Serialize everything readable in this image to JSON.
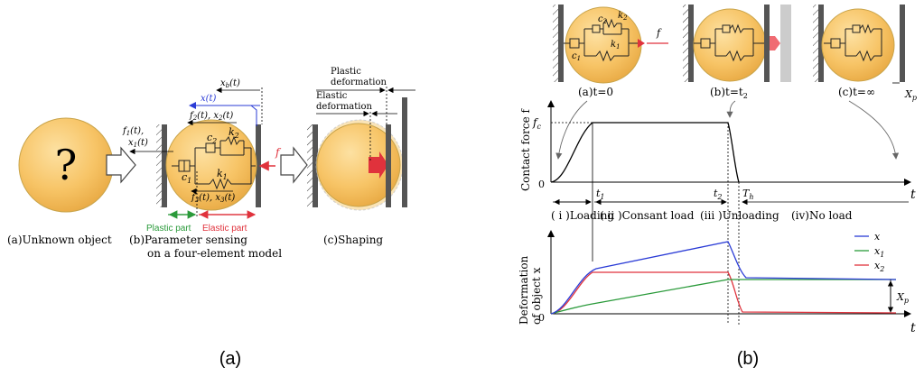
{
  "panel_a": {
    "caption": "(a)",
    "unknown_mark": "?",
    "sub_a": "(a)Unknown object",
    "sub_b_line1": "(b)Parameter sensing",
    "sub_b_line2": "on a four-element model",
    "sub_c": "(c)Shaping",
    "labels": {
      "f1x1_line1": "f",
      "f1x1_sub1": "1",
      "f1x1_rest": "(t),",
      "x1": "x",
      "x1_sub": "1",
      "x1_rest": "(t)",
      "xb": "x",
      "xb_sub": "b",
      "xb_rest": "(t)",
      "xt": "x(t)",
      "f2": "f",
      "f2_sub": "2",
      "f2_rest": "(t), x",
      "f2_sub2": "2",
      "f2_rest2": "(t)",
      "f3": "f",
      "f3_sub": "3",
      "f3_rest": "(t), x",
      "f3_sub2": "3",
      "f3_rest2": "(t)",
      "c2": "c",
      "c2_sub": "2",
      "k2": "k",
      "k2_sub": "2",
      "k1": "k",
      "k1_sub": "1",
      "c1": "c",
      "c1_sub": "1",
      "f": "f",
      "plastic_part": "Plastic part",
      "elastic_part": "Elastic part",
      "plastic_def_1": "Plastic",
      "plastic_def_2": "deformation",
      "elastic_def_1": "Elastic",
      "elastic_def_2": "deformation"
    }
  },
  "panel_b": {
    "caption": "(b)",
    "states": {
      "a": "(a)t=0",
      "b": "(b)t=t",
      "b_sub": "2",
      "c": "(c)t=∞",
      "xp": "X",
      "xp_sub": "p",
      "f": "f",
      "c1": "c",
      "c1_sub": "1",
      "c2": "c",
      "c2_sub": "2",
      "k1": "k",
      "k1_sub": "1",
      "k2": "k",
      "k2_sub": "2"
    },
    "force_plot": {
      "ylabel": "Contact force f",
      "fc": "f",
      "fc_sub": "c",
      "zero": "0",
      "t": "t",
      "t1": "t",
      "t1_sub": "1",
      "t2": "t",
      "t2_sub": "2",
      "th": "T",
      "th_sub": "h",
      "phase1": "( i )Loading",
      "phase2": "( ii )Consant load",
      "phase3": "(iii )Unloading",
      "phase4": "(iv)No load"
    },
    "deform_plot": {
      "ylabel_1": "Deformation",
      "ylabel_2": "of object x",
      "zero": "0",
      "t": "t",
      "xp": "X",
      "xp_sub": "p",
      "legend": [
        {
          "label": "x",
          "sub": "",
          "color": "#2a3bd6"
        },
        {
          "label": "x",
          "sub": "1",
          "color": "#2a9a3a"
        },
        {
          "label": "x",
          "sub": "2",
          "color": "#e0323c"
        }
      ]
    }
  },
  "colors": {
    "ball": "#f6c56a",
    "ball_edge": "#c9a44a",
    "wall": "#555555",
    "red": "#e0323c",
    "blue": "#2a3bd6",
    "green": "#2a9a3a"
  }
}
